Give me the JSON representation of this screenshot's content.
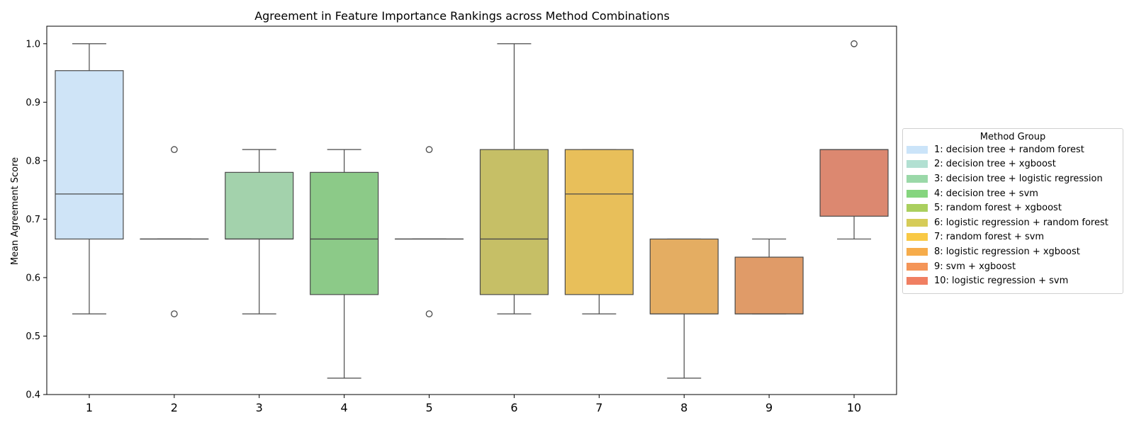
{
  "chart_data": {
    "type": "box",
    "title": "Agreement in Feature Importance Rankings across Method Combinations",
    "xlabel": "",
    "ylabel": "Mean Agreement Score",
    "ylim": [
      0.4,
      1.03
    ],
    "yticks": [
      "0.4",
      "0.5",
      "0.6",
      "0.7",
      "0.8",
      "0.9",
      "1.0"
    ],
    "grid": false,
    "legend_placement": "right, outside plot",
    "legend_title": "Method Group",
    "boxes": [
      {
        "category": "1",
        "legend": "1: decision tree + random forest",
        "color": "#cfe4f7",
        "whisker_low": 0.538,
        "q1": 0.666,
        "median": 0.743,
        "q3": 0.954,
        "whisker_high": 1.0,
        "outliers": []
      },
      {
        "category": "2",
        "legend": "2: decision tree + xgboost",
        "color": "#b5e0d2",
        "whisker_low": 0.666,
        "q1": 0.666,
        "median": 0.666,
        "q3": 0.666,
        "whisker_high": 0.666,
        "outliers": [
          0.819,
          0.538
        ]
      },
      {
        "category": "3",
        "legend": "3: decision tree + logistic regression",
        "color": "#a3d2ac",
        "whisker_low": 0.538,
        "q1": 0.666,
        "median": 0.666,
        "q3": 0.78,
        "whisker_high": 0.819,
        "outliers": []
      },
      {
        "category": "4",
        "legend": "4: decision tree + svm",
        "color": "#8cca88",
        "whisker_low": 0.428,
        "q1": 0.571,
        "median": 0.666,
        "q3": 0.78,
        "whisker_high": 0.819,
        "outliers": []
      },
      {
        "category": "5",
        "legend": "5: random forest + xgboost",
        "color": "#b0d068",
        "whisker_low": 0.666,
        "q1": 0.666,
        "median": 0.666,
        "q3": 0.666,
        "whisker_high": 0.666,
        "outliers": [
          0.819,
          0.538
        ]
      },
      {
        "category": "6",
        "legend": "6: logistic regression + random forest",
        "color": "#c6bf66",
        "whisker_low": 0.538,
        "q1": 0.571,
        "median": 0.666,
        "q3": 0.819,
        "whisker_high": 1.0,
        "outliers": []
      },
      {
        "category": "7",
        "legend": "7: random forest + svm",
        "color": "#e8bf5a",
        "whisker_low": 0.538,
        "q1": 0.571,
        "median": 0.743,
        "q3": 0.819,
        "whisker_high": 0.819,
        "outliers": []
      },
      {
        "category": "8",
        "legend": "8: logistic regression + xgboost",
        "color": "#e4ad62",
        "whisker_low": 0.428,
        "q1": 0.538,
        "median": 0.538,
        "q3": 0.666,
        "whisker_high": 0.666,
        "outliers": []
      },
      {
        "category": "9",
        "legend": "9: svm + xgboost",
        "color": "#e09b68",
        "whisker_low": 0.538,
        "q1": 0.538,
        "median": 0.538,
        "q3": 0.635,
        "whisker_high": 0.666,
        "outliers": []
      },
      {
        "category": "10",
        "legend": "10: logistic regression + svm",
        "color": "#dc8870",
        "whisker_low": 0.666,
        "q1": 0.705,
        "median": 0.819,
        "q3": 0.819,
        "whisker_high": 0.819,
        "outliers": [
          1.0
        ]
      }
    ],
    "legend_swatch_colors": [
      "#cbe4f9",
      "#b2e0d2",
      "#9ad8a8",
      "#85d57e",
      "#aacf5e",
      "#d6cc58",
      "#f9c945",
      "#f6ac4b",
      "#f49558",
      "#f07f62"
    ]
  }
}
